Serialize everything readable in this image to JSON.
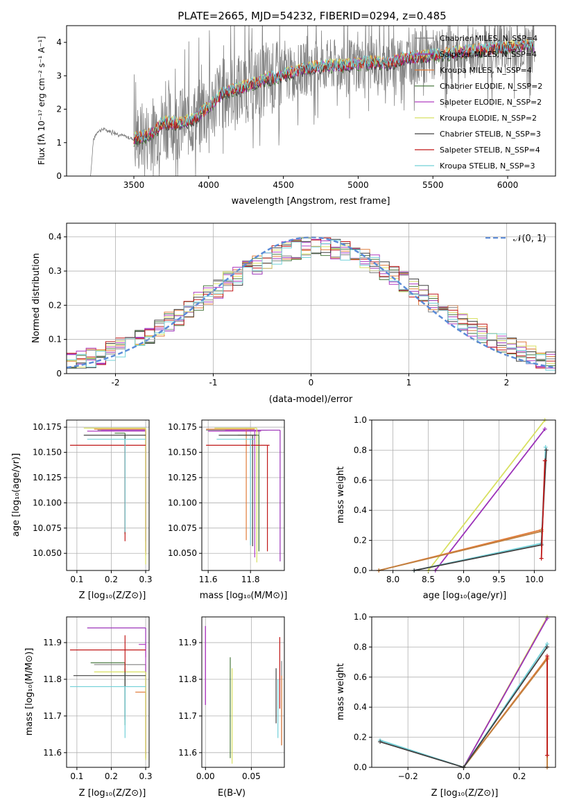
{
  "figure_title": "PLATE=2665, MJD=54232, FIBERID=0294, z=0.485",
  "series_colors": [
    "#808080",
    "#9b30b8",
    "#e07b39",
    "#4a7a40",
    "#b03cc0",
    "#d8e060",
    "#404040",
    "#c01818",
    "#70d0d8"
  ],
  "chart_data": [
    {
      "id": "spectrum",
      "type": "line",
      "xlabel": "wavelength [Angstrom, rest frame]",
      "ylabel": "Flux [fλ 10⁻¹⁷ erg cm⁻² s⁻¹ A⁻¹]",
      "xlim": [
        3050,
        6320
      ],
      "ylim": [
        0,
        4.5
      ],
      "xticks": [
        3500,
        4000,
        4500,
        5000,
        5500,
        6000
      ],
      "yticks": [
        0,
        1,
        2,
        3,
        4
      ],
      "legend": "right",
      "series": [
        {
          "name": "Chabrier MILES, N_SSP=4"
        },
        {
          "name": "Salpeter MILES, N_SSP=4"
        },
        {
          "name": "Kroupa MILES, N_SSP=4"
        },
        {
          "name": "Chabrier ELODIE, N_SSP=2"
        },
        {
          "name": "Salpeter ELODIE, N_SSP=2"
        },
        {
          "name": "Kroupa ELODIE, N_SSP=2"
        },
        {
          "name": "Chabrier STELIB, N_SSP=3"
        },
        {
          "name": "Salpeter STELIB, N_SSP=4"
        },
        {
          "name": "Kroupa STELIB, N_SSP=3"
        }
      ],
      "continuum": {
        "x": [
          3210,
          3230,
          3260,
          3300,
          3400,
          3500,
          3600,
          3700,
          3800,
          3900,
          4000,
          4100,
          4200,
          4300,
          4400,
          4500,
          4600,
          4700,
          4800,
          4900,
          5000,
          5100,
          5200,
          5300,
          5400,
          5500,
          5600,
          5700,
          5800,
          5900,
          6000,
          6100,
          6180
        ],
        "y": [
          0,
          1.1,
          1.35,
          1.4,
          1.25,
          1.1,
          1.2,
          1.6,
          1.55,
          1.7,
          2.05,
          2.5,
          2.6,
          2.75,
          2.9,
          3.0,
          3.15,
          3.25,
          3.3,
          3.3,
          3.35,
          3.4,
          3.35,
          3.5,
          3.55,
          3.6,
          3.65,
          3.7,
          3.75,
          3.8,
          3.85,
          3.9,
          3.85
        ]
      }
    },
    {
      "id": "residuals",
      "type": "step",
      "xlabel": "(data-model)/error",
      "ylabel": "Normed distribution",
      "xlim": [
        -2.5,
        2.5
      ],
      "ylim": [
        0,
        0.44
      ],
      "xticks": [
        -2,
        -1,
        0,
        1,
        2
      ],
      "yticks": [
        0,
        0.1,
        0.2,
        0.3,
        0.4
      ],
      "grid": true,
      "legend": "top-right",
      "gaussian_label": "𝒩(0, 1)",
      "gaussian": {
        "mu": 0,
        "sigma": 1
      }
    },
    {
      "id": "age-vs-z",
      "type": "errorbar",
      "xlabel": "Z [log₁₀(Z/Z⊙)]",
      "ylabel": "age  [log₁₀(age/yr)]",
      "xlim": [
        0.07,
        0.31
      ],
      "ylim": [
        10.033,
        10.182
      ],
      "xticks": [
        0.1,
        0.2,
        0.3
      ],
      "yticks": [
        10.05,
        10.075,
        10.1,
        10.125,
        10.15,
        10.175
      ],
      "ytick_labels": [
        "10.050",
        "10.075",
        "10.100",
        "10.125",
        "10.150",
        "10.175"
      ],
      "grid": true,
      "points": [
        {
          "x": 0.3,
          "y": 10.172,
          "xerr": [
            0.14,
            0
          ],
          "yerr": [
            0.12,
            0
          ]
        },
        {
          "x": 0.3,
          "y": 10.172,
          "xerr": [
            0.13,
            0
          ],
          "yerr": [
            0.11,
            0
          ]
        },
        {
          "x": 0.3,
          "y": 10.173,
          "xerr": [
            0.15,
            0
          ],
          "yerr": [
            0.125,
            0
          ]
        },
        {
          "x": 0.24,
          "y": 10.169,
          "xerr": [
            0.03,
            0
          ],
          "yerr": [
            0.1,
            0
          ]
        },
        {
          "x": 0.3,
          "y": 10.171,
          "xerr": [
            0.17,
            0
          ],
          "yerr": [
            0.12,
            0
          ]
        },
        {
          "x": 0.3,
          "y": 10.174,
          "xerr": [
            0.18,
            0
          ],
          "yerr": [
            0.135,
            0
          ]
        },
        {
          "x": 0.24,
          "y": 10.167,
          "xerr": [
            0.12,
            0.06
          ],
          "yerr": [
            0.097,
            0
          ]
        },
        {
          "x": 0.24,
          "y": 10.157,
          "xerr": [
            0.16,
            0.06
          ],
          "yerr": [
            0.095,
            0
          ]
        },
        {
          "x": 0.24,
          "y": 10.163,
          "xerr": [
            0.11,
            0.06
          ],
          "yerr": [
            0.092,
            0
          ]
        }
      ]
    },
    {
      "id": "age-vs-mass",
      "type": "errorbar",
      "xlabel": "mass [log₁₀(M/M⊙)]",
      "xlim": [
        11.57,
        11.96
      ],
      "ylim": [
        10.033,
        10.182
      ],
      "xticks": [
        11.6,
        11.8
      ],
      "yticks": [
        10.05,
        10.075,
        10.1,
        10.125,
        10.15,
        10.175
      ],
      "ytick_labels": [
        "10.050",
        "10.075",
        "10.100",
        "10.125",
        "10.150",
        "10.175"
      ],
      "grid": true,
      "points": [
        {
          "x": 11.84,
          "y": 10.172,
          "xerr": [
            0.25,
            0.04
          ],
          "yerr": [
            0.12,
            0
          ]
        },
        {
          "x": 11.94,
          "y": 10.172,
          "xerr": [
            0.26,
            0
          ],
          "yerr": [
            0.13,
            0
          ]
        },
        {
          "x": 11.78,
          "y": 10.173,
          "xerr": [
            0.19,
            0.04
          ],
          "yerr": [
            0.11,
            0
          ]
        },
        {
          "x": 11.84,
          "y": 10.167,
          "xerr": [
            0.1,
            0
          ],
          "yerr": [
            0.115,
            0
          ]
        },
        {
          "x": 11.82,
          "y": 10.171,
          "xerr": [
            0.22,
            0.03
          ],
          "yerr": [
            0.125,
            0
          ]
        },
        {
          "x": 11.83,
          "y": 10.174,
          "xerr": [
            0.2,
            0
          ],
          "yerr": [
            0.133,
            0
          ]
        },
        {
          "x": 11.81,
          "y": 10.167,
          "xerr": [
            0.16,
            0.02
          ],
          "yerr": [
            0.11,
            0
          ]
        },
        {
          "x": 11.88,
          "y": 10.157,
          "xerr": [
            0.29,
            0.01
          ],
          "yerr": [
            0.105,
            0
          ]
        },
        {
          "x": 11.8,
          "y": 10.163,
          "xerr": [
            0.16,
            0.02
          ],
          "yerr": [
            0.105,
            0
          ]
        }
      ]
    },
    {
      "id": "weight-vs-age",
      "type": "line",
      "xlabel": "age  [log₁₀(age/yr)]",
      "ylabel": "mass weight",
      "xlim": [
        7.7,
        10.3
      ],
      "ylim": [
        0,
        1
      ],
      "xticks": [
        8.0,
        8.5,
        9.0,
        9.5,
        10.0
      ],
      "xtick_labels": [
        "8.0",
        "8.5",
        "9.0",
        "9.5",
        "10.0"
      ],
      "yticks": [
        0,
        0.2,
        0.4,
        0.6,
        0.8,
        1.0
      ],
      "ytick_labels": [
        "0.0",
        "0.2",
        "0.4",
        "0.6",
        "0.8",
        "1.0"
      ],
      "grid": true,
      "series": [
        {
          "x": [
            8.5,
            10.15
          ],
          "y": [
            0.0,
            1.0
          ]
        },
        {
          "x": [
            8.6,
            10.15
          ],
          "y": [
            0.0,
            0.94
          ]
        },
        {
          "x": [
            7.8,
            10.1
          ],
          "y": [
            0.0,
            0.27
          ]
        },
        {
          "x": [
            7.8,
            10.1
          ],
          "y": [
            0.0,
            0.26
          ]
        },
        {
          "x": [
            8.3,
            10.1,
            10.16
          ],
          "y": [
            0.0,
            0.18,
            0.82
          ]
        },
        {
          "x": [
            8.3,
            10.1,
            10.17
          ],
          "y": [
            0.0,
            0.17,
            0.8
          ]
        },
        {
          "x": [
            10.1,
            10.15
          ],
          "y": [
            0.08,
            0.73
          ]
        }
      ]
    },
    {
      "id": "mass-vs-z",
      "type": "errorbar",
      "xlabel": "Z [log₁₀(Z/Z⊙)]",
      "ylabel": "mass [log₁₀(M/M⊙)]",
      "xlim": [
        0.07,
        0.31
      ],
      "ylim": [
        11.56,
        11.97
      ],
      "xticks": [
        0.1,
        0.2,
        0.3
      ],
      "yticks": [
        11.6,
        11.7,
        11.8,
        11.9
      ],
      "grid": true,
      "points": [
        {
          "x": 0.3,
          "y": 11.84,
          "xerr": [
            0.15,
            0
          ],
          "yerr": [
            0.26,
            0
          ]
        },
        {
          "x": 0.3,
          "y": 11.94,
          "xerr": [
            0.17,
            0
          ],
          "yerr": [
            0.08,
            0
          ]
        },
        {
          "x": 0.3,
          "y": 11.765,
          "xerr": [
            0.03,
            0
          ],
          "yerr": [
            0.18,
            0
          ]
        },
        {
          "x": 0.24,
          "y": 11.845,
          "xerr": [
            0.1,
            0
          ],
          "yerr": [
            0.17,
            0
          ]
        },
        {
          "x": 0.3,
          "y": 11.895,
          "xerr": [
            0.02,
            0
          ],
          "yerr": [
            0.3,
            0
          ]
        },
        {
          "x": 0.3,
          "y": 11.82,
          "xerr": [
            0.15,
            0
          ],
          "yerr": [
            0.24,
            0
          ]
        },
        {
          "x": 0.24,
          "y": 11.81,
          "xerr": [
            0.15,
            0.06
          ],
          "yerr": [
            0.12,
            0.02
          ]
        },
        {
          "x": 0.24,
          "y": 11.88,
          "xerr": [
            0.16,
            0.06
          ],
          "yerr": [
            0.06,
            0.04
          ]
        },
        {
          "x": 0.24,
          "y": 11.78,
          "xerr": [
            0.16,
            0.06
          ],
          "yerr": [
            0.14,
            0
          ]
        }
      ]
    },
    {
      "id": "mass-vs-ebv",
      "type": "errorbar",
      "xlabel": "E(B-V)",
      "xlim": [
        -0.004,
        0.086
      ],
      "ylim": [
        11.56,
        11.97
      ],
      "xticks": [
        0.0,
        0.05
      ],
      "xtick_labels": [
        "0.00",
        "0.05"
      ],
      "yticks": [
        11.6,
        11.7,
        11.8,
        11.9
      ],
      "grid": true,
      "points": [
        {
          "x": 0.083,
          "y": 11.75,
          "yerr": [
            0.13,
            0.1
          ]
        },
        {
          "x": 0.0,
          "y": 11.84,
          "yerr": [
            0.11,
            0.105
          ]
        },
        {
          "x": 0.083,
          "y": 11.73,
          "yerr": [
            0.11,
            0.08
          ]
        },
        {
          "x": 0.027,
          "y": 11.72,
          "yerr": [
            0.135,
            0.14
          ]
        },
        {
          "x": 0.0,
          "y": 11.84,
          "yerr": [
            0.11,
            0.105
          ]
        },
        {
          "x": 0.029,
          "y": 11.7,
          "yerr": [
            0.13,
            0.13
          ]
        },
        {
          "x": 0.077,
          "y": 11.75,
          "yerr": [
            0.07,
            0.08
          ]
        },
        {
          "x": 0.081,
          "y": 11.79,
          "yerr": [
            0.07,
            0.125
          ]
        },
        {
          "x": 0.079,
          "y": 11.71,
          "yerr": [
            0.07,
            0.09
          ]
        }
      ]
    },
    {
      "id": "weight-vs-z",
      "type": "line",
      "xlabel": "Z [log₁₀(Z/Z⊙)]",
      "ylabel": "mass weight",
      "xlim": [
        -0.33,
        0.33
      ],
      "ylim": [
        0,
        1
      ],
      "xticks": [
        -0.2,
        0.0,
        0.2
      ],
      "xtick_labels": [
        "−0.2",
        "0.0",
        "0.2"
      ],
      "yticks": [
        0,
        0.2,
        0.4,
        0.6,
        0.8,
        1.0
      ],
      "ytick_labels": [
        "0.0",
        "0.2",
        "0.4",
        "0.6",
        "0.8",
        "1.0"
      ],
      "grid": true,
      "series": [
        {
          "x": [
            0.0,
            0.3
          ],
          "y": [
            0.0,
            1.0
          ]
        },
        {
          "x": [
            0.0,
            0.3
          ],
          "y": [
            0.0,
            0.99
          ]
        },
        {
          "x": [
            0.0,
            0.3,
            0.3
          ],
          "y": [
            0.0,
            0.73,
            0.0
          ]
        },
        {
          "x": [
            0.0,
            0.3,
            0.3
          ],
          "y": [
            0.0,
            0.72,
            0.0
          ]
        },
        {
          "x": [
            -0.3,
            0.0,
            0.3
          ],
          "y": [
            0.18,
            0.0,
            0.82
          ]
        },
        {
          "x": [
            -0.3,
            0.0,
            0.3
          ],
          "y": [
            0.17,
            0.0,
            0.8
          ]
        },
        {
          "x": [
            0.3,
            0.3
          ],
          "y": [
            0.08,
            0.74
          ]
        }
      ]
    }
  ]
}
